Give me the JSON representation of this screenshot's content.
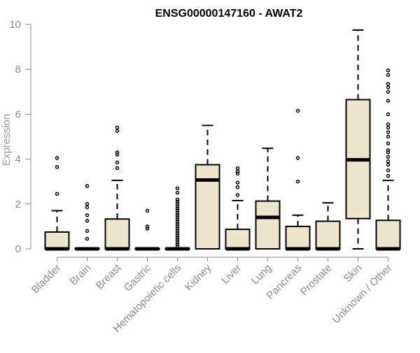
{
  "chart_data": {
    "type": "boxplot",
    "title": "ENSG00000147160 - AWAT2",
    "xlabel": "",
    "ylabel": "Expression",
    "ylim": [
      0,
      10
    ],
    "yticks": [
      0,
      2,
      4,
      6,
      8,
      10
    ],
    "grid": false,
    "colors": {
      "box_fill": "#ede6cc",
      "stroke": "#000000",
      "axis_text": "#8c8c8c"
    },
    "categories": [
      "Bladder",
      "Brain",
      "Breast",
      "Gastric",
      "Hematopoietic cells",
      "Kidney",
      "Liver",
      "Lung",
      "Pancreas",
      "Prostate",
      "Skin",
      "Unknown / Other"
    ],
    "boxes": [
      {
        "q1": 0,
        "median": 0,
        "q3": 0.75,
        "whisker_low": 0,
        "whisker_high": 1.7,
        "outliers": [
          2.45,
          3.65,
          4.05
        ]
      },
      {
        "q1": 0,
        "median": 0,
        "q3": 0.02,
        "whisker_low": 0,
        "whisker_high": 0.02,
        "outliers": [
          0.45,
          0.8,
          1.25,
          1.5,
          1.85,
          2.0,
          2.8
        ]
      },
      {
        "q1": 0,
        "median": 0,
        "q3": 1.33,
        "whisker_low": 0,
        "whisker_high": 3.05,
        "outliers": [
          3.6,
          3.85,
          4.2,
          4.3,
          5.25,
          5.4
        ]
      },
      {
        "q1": 0,
        "median": 0,
        "q3": 0.02,
        "whisker_low": 0,
        "whisker_high": 0.02,
        "outliers": [
          0.9,
          1.0,
          1.7
        ]
      },
      {
        "q1": 0,
        "median": 0,
        "q3": 0.02,
        "whisker_low": 0,
        "whisker_high": 0.02,
        "outliers": [
          0.1,
          0.2,
          0.3,
          0.4,
          0.5,
          0.6,
          0.7,
          0.8,
          0.9,
          1.0,
          1.1,
          1.2,
          1.3,
          1.4,
          1.5,
          1.6,
          1.7,
          1.8,
          1.9,
          2.0,
          2.1,
          2.2,
          2.5,
          2.7
        ]
      },
      {
        "q1": 0,
        "median": 3.07,
        "q3": 3.75,
        "whisker_low": 0,
        "whisker_high": 5.5,
        "outliers": []
      },
      {
        "q1": 0,
        "median": 0,
        "q3": 0.87,
        "whisker_low": 0,
        "whisker_high": 2.15,
        "outliers": [
          2.4,
          2.75,
          2.95,
          3.35,
          3.45,
          3.6
        ]
      },
      {
        "q1": 0,
        "median": 1.4,
        "q3": 2.13,
        "whisker_low": 0,
        "whisker_high": 4.48,
        "outliers": []
      },
      {
        "q1": 0,
        "median": 0,
        "q3": 1.0,
        "whisker_low": 0,
        "whisker_high": 1.5,
        "outliers": [
          3.0,
          4.05,
          6.15
        ]
      },
      {
        "q1": 0,
        "median": 0,
        "q3": 1.23,
        "whisker_low": 0,
        "whisker_high": 2.05,
        "outliers": []
      },
      {
        "q1": 1.35,
        "median": 3.97,
        "q3": 6.65,
        "whisker_low": 0,
        "whisker_high": 9.75,
        "outliers": []
      },
      {
        "q1": 0,
        "median": 0,
        "q3": 1.27,
        "whisker_low": 0,
        "whisker_high": 3.05,
        "outliers": [
          3.25,
          3.5,
          3.75,
          3.9,
          4.1,
          4.3,
          4.4,
          4.7,
          5.0,
          5.2,
          5.4,
          5.55,
          6.0,
          6.6,
          7.0,
          7.2,
          7.35,
          7.75,
          7.95
        ]
      }
    ]
  }
}
